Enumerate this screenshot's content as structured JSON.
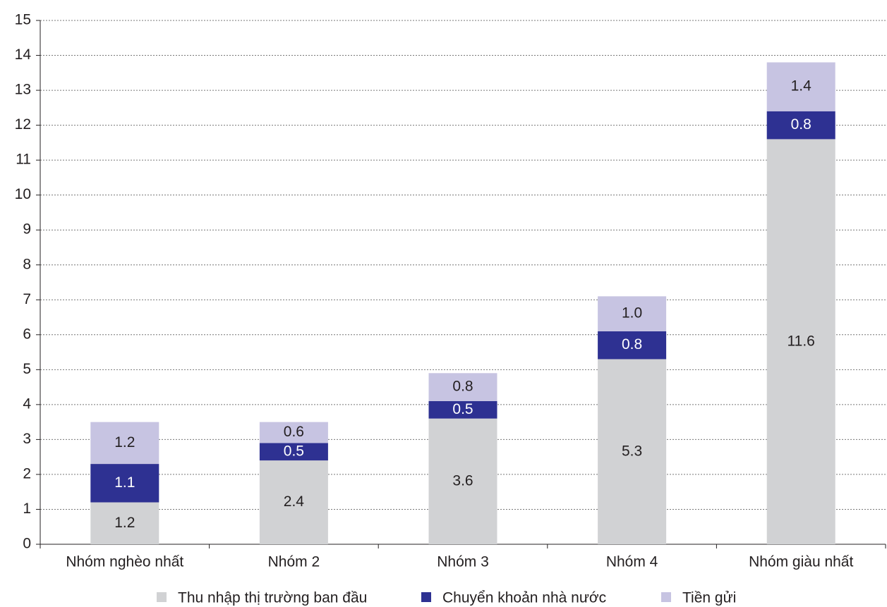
{
  "chart_data": {
    "type": "stacked_bar",
    "categories": [
      "Nhóm nghèo nhất",
      "Nhóm 2",
      "Nhóm 3",
      "Nhóm 4",
      "Nhóm giàu nhất"
    ],
    "series": [
      {
        "name": "Thu nhập thị trường ban đầu",
        "color": "#d1d2d4",
        "label_color": "#231f20",
        "values": [
          1.2,
          2.4,
          3.6,
          5.3,
          11.6
        ]
      },
      {
        "name": "Chuyển khoản nhà nước",
        "color": "#2e3192",
        "label_color": "#ffffff",
        "values": [
          1.1,
          0.5,
          0.5,
          0.8,
          0.8
        ]
      },
      {
        "name": "Tiền gửi",
        "color": "#c7c4e2",
        "label_color": "#231f20",
        "values": [
          1.2,
          0.6,
          0.8,
          1,
          1.4
        ],
        "value_labels": [
          "1.2",
          "0.6",
          "0.8",
          "1.0",
          "1.4"
        ]
      }
    ],
    "ylim": [
      0,
      15
    ],
    "yticks": [
      0,
      1,
      2,
      3,
      4,
      5,
      6,
      7,
      8,
      9,
      10,
      11,
      12,
      13,
      14,
      15
    ],
    "grid": true,
    "legend": "bottom"
  }
}
